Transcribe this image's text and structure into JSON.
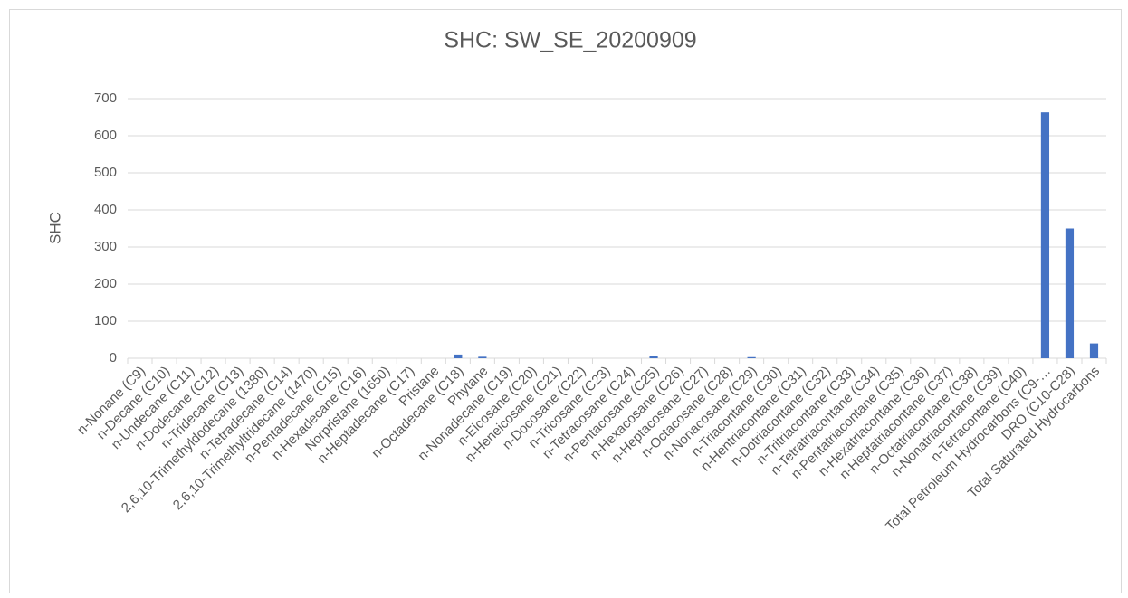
{
  "chart_data": {
    "type": "bar",
    "title": "SHC: SW_SE_20200909",
    "y_label": "SHC",
    "categories": [
      "n-Nonane (C9)",
      "n-Decane (C10)",
      "n-Undecane (C11)",
      "n-Dodecane (C12)",
      "n-Tridecane (C13)",
      "2,6,10-Trimethyldodecane (1380)",
      "n-Tetradecane (C14)",
      "2,6,10-Trimethyltridecane (1470)",
      "n-Pentadecane (C15)",
      "n-Hexadecane (C16)",
      "Norpristane (1650)",
      "n-Heptadecane (C17)",
      "Pristane",
      "n-Octadecane (C18)",
      "Phytane",
      "n-Nonadecane (C19)",
      "n-Eicosane (C20)",
      "n-Heneicosane (C21)",
      "n-Docosane (C22)",
      "n-Tricosane (C23)",
      "n-Tetracosane (C24)",
      "n-Pentacosane (C25)",
      "n-Hexacosane (C26)",
      "n-Heptacosane (C27)",
      "n-Octacosane (C28)",
      "n-Nonacosane (C29)",
      "n-Triacontane (C30)",
      "n-Hentriacontane (C31)",
      "n-Dotriacontane (C32)",
      "n-Tritriacontane (C33)",
      "n-Tetratriacontane (C34)",
      "n-Pentatriacontane (C35)",
      "n-Hexatriacontane (C36)",
      "n-Heptatriacontane (C37)",
      "n-Octatriacontane (C38)",
      "n-Nonatriacontane (C39)",
      "n-Tetracontane (C40)",
      "Total Petroleum Hydrocarbons (C9-…",
      "DRO (C10-C28)",
      "Total Saturated Hydrocarbons"
    ],
    "values": [
      0,
      0,
      0,
      0,
      0,
      0,
      0,
      0,
      0,
      0,
      0,
      0,
      0,
      10,
      4,
      0,
      0,
      0,
      0,
      0,
      0,
      7,
      0,
      0,
      0,
      3,
      0,
      0,
      0,
      0,
      0,
      0,
      0,
      0,
      0,
      0,
      0,
      663,
      350,
      40
    ],
    "color": "#4472c4",
    "ylim": [
      0,
      700
    ],
    "yticks": [
      0,
      100,
      200,
      300,
      400,
      500,
      600,
      700
    ],
    "grid": true
  }
}
